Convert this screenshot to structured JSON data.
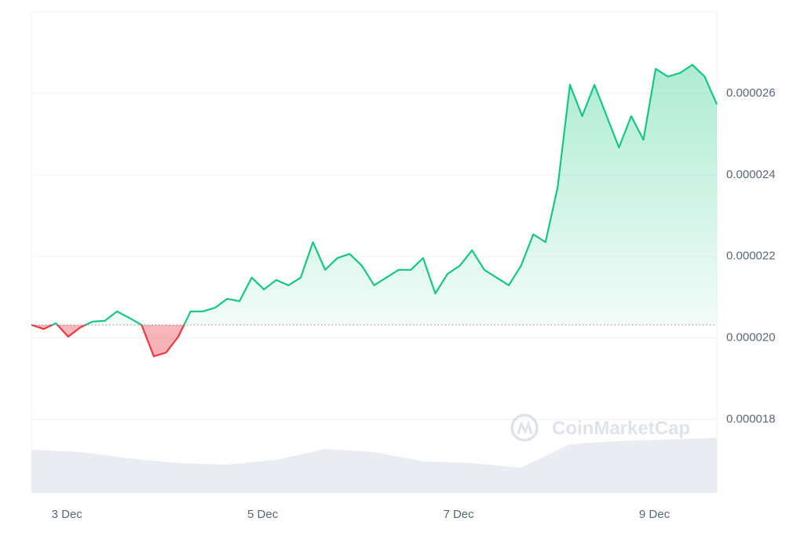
{
  "chart_data": {
    "type": "line",
    "values": [
      2.032e-05,
      2.022e-05,
      2.036e-05,
      2.003e-05,
      2.026e-05,
      2.04e-05,
      2.042e-05,
      2.065e-05,
      2.049e-05,
      2.032e-05,
      1.955e-05,
      1.964e-05,
      2.003e-05,
      2.065e-05,
      2.065e-05,
      2.074e-05,
      2.096e-05,
      2.09e-05,
      2.148e-05,
      2.119e-05,
      2.142e-05,
      2.129e-05,
      2.148e-05,
      2.235e-05,
      2.167e-05,
      2.196e-05,
      2.206e-05,
      2.177e-05,
      2.129e-05,
      2.148e-05,
      2.167e-05,
      2.167e-05,
      2.196e-05,
      2.109e-05,
      2.157e-05,
      2.177e-05,
      2.215e-05,
      2.167e-05,
      2.148e-05,
      2.129e-05,
      2.177e-05,
      2.254e-05,
      2.235e-05,
      2.37e-05,
      2.621e-05,
      2.544e-05,
      2.621e-05,
      2.544e-05,
      2.467e-05,
      2.544e-05,
      2.486e-05,
      2.66e-05,
      2.641e-05,
      2.65e-05,
      2.67e-05,
      2.641e-05,
      2.573e-05
    ],
    "up_color": "#16c784",
    "down_color": "#ea3943",
    "xlim": [
      0,
      56
    ],
    "xticks": [
      {
        "value": 2.9,
        "label": "3 Dec"
      },
      {
        "value": 18.9,
        "label": "5 Dec"
      },
      {
        "value": 34.9,
        "label": "7 Dec"
      },
      {
        "value": 50.9,
        "label": "9 Dec"
      }
    ],
    "ylim": [
      1.62e-05,
      2.8e-05
    ],
    "yticks": [
      1.8e-05,
      {
        "value": 2e-05,
        "label": "0.000020"
      },
      2.2e-05,
      2.4e-05,
      2.6e-05
    ],
    "grid": true,
    "volume": {
      "color": "#e9ecf1",
      "values": [
        55,
        52,
        44,
        38,
        36,
        42,
        56,
        52,
        40,
        38,
        32,
        62,
        66,
        68,
        70
      ]
    },
    "watermark": "CoinMarketCap"
  }
}
